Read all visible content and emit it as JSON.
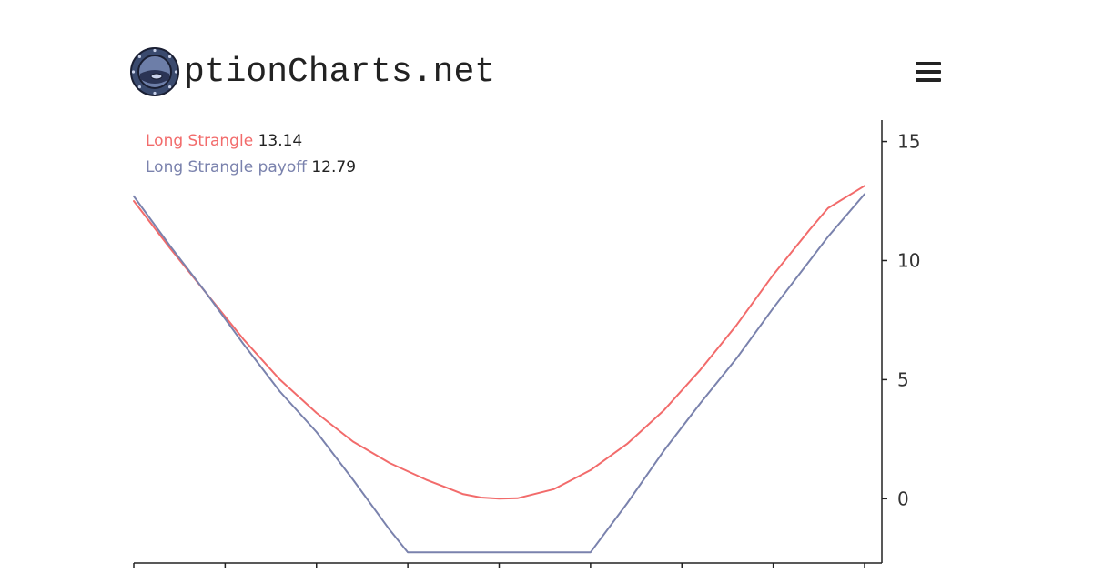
{
  "header": {
    "brand_text": "ptionCharts.net",
    "logo_icon": "porthole-logo-icon",
    "menu_icon": "hamburger-menu-icon"
  },
  "legend": {
    "items": [
      {
        "label": "Long Strangle",
        "value": "13.14",
        "color": "#f26b6b"
      },
      {
        "label": "Long Strangle payoff",
        "value": "12.79",
        "color": "#7a82ad"
      }
    ]
  },
  "chart_data": {
    "type": "line",
    "title": "",
    "xlabel": "",
    "ylabel": "",
    "x_tick_count": 9,
    "y_ticks": [
      0,
      5,
      10,
      15
    ],
    "ylim": [
      -2.7,
      15.9
    ],
    "xlim": [
      0,
      8
    ],
    "grid": false,
    "y_axis_position": "right",
    "series": [
      {
        "name": "Long Strangle",
        "color": "#f26b6b",
        "x": [
          0,
          0.4,
          0.8,
          1.2,
          1.6,
          2.0,
          2.4,
          2.8,
          3.2,
          3.4,
          3.6,
          3.8,
          4.0,
          4.2,
          4.6,
          5.0,
          5.4,
          5.8,
          6.2,
          6.6,
          7.0,
          7.4,
          7.6,
          8.0
        ],
        "values": [
          12.5,
          10.5,
          8.6,
          6.7,
          5.0,
          3.6,
          2.4,
          1.5,
          0.8,
          0.5,
          0.2,
          0.05,
          0.0,
          0.02,
          0.4,
          1.2,
          2.3,
          3.7,
          5.4,
          7.3,
          9.4,
          11.3,
          12.2,
          13.14
        ]
      },
      {
        "name": "Long Strangle payoff",
        "color": "#7a82ad",
        "x": [
          0,
          0.4,
          0.8,
          1.2,
          1.6,
          2.0,
          2.4,
          2.8,
          3.0,
          3.4,
          4.0,
          4.6,
          5.0,
          5.4,
          5.8,
          6.2,
          6.6,
          7.0,
          7.4,
          7.6,
          8.0
        ],
        "values": [
          12.7,
          10.6,
          8.6,
          6.5,
          4.5,
          2.8,
          0.8,
          -1.3,
          -2.25,
          -2.25,
          -2.25,
          -2.25,
          -2.25,
          -0.2,
          2.0,
          4.0,
          5.9,
          8.0,
          10.0,
          11.0,
          12.79
        ]
      }
    ]
  }
}
